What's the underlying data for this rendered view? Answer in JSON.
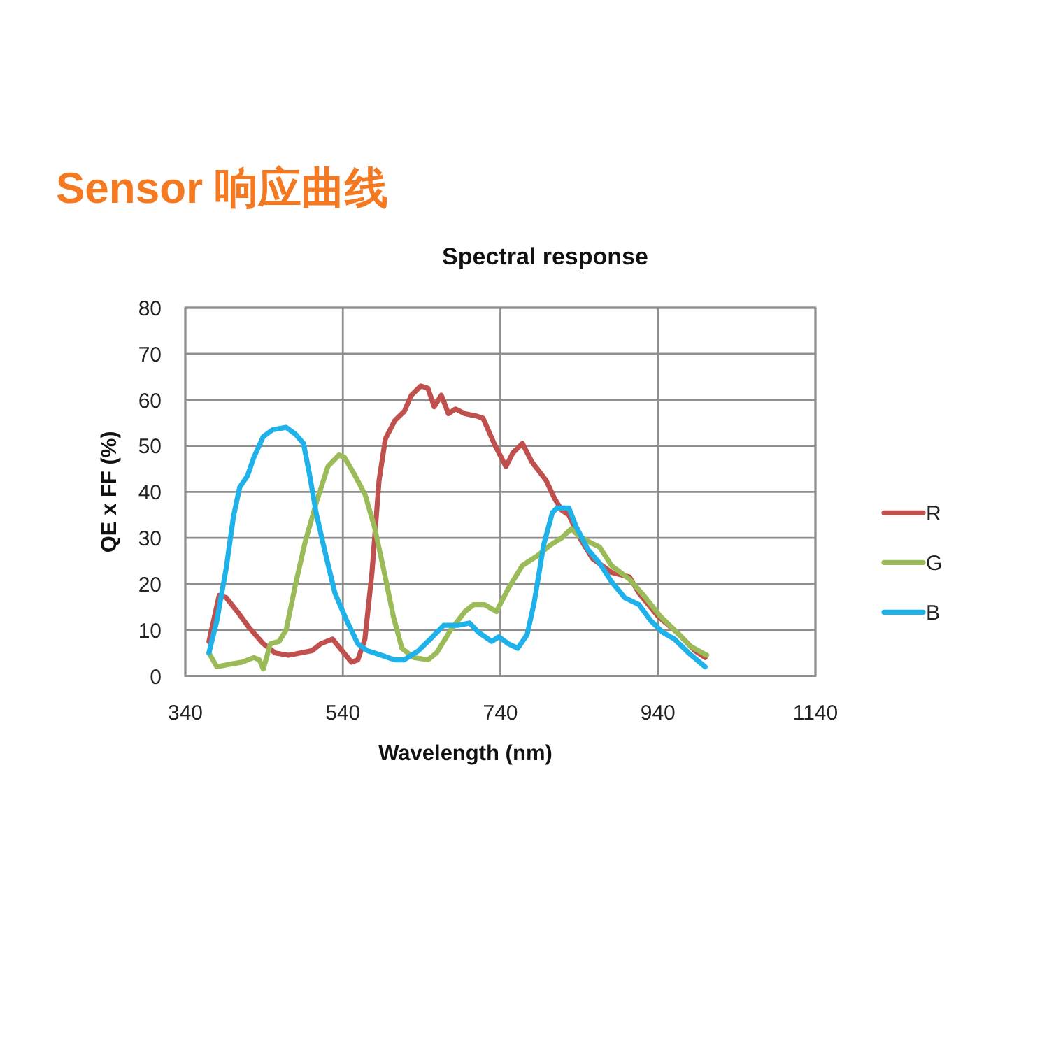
{
  "chart_data": {
    "type": "line",
    "title": "Sensor 响应曲线",
    "subtitle": "Spectral response",
    "xlabel": "Wavelength (nm)",
    "ylabel": "QE x FF (%)",
    "xlim": [
      340,
      1140
    ],
    "xticks": [
      340,
      540,
      740,
      940,
      1140
    ],
    "ylim": [
      0,
      80
    ],
    "yticks": [
      0,
      10,
      20,
      30,
      40,
      50,
      60,
      70,
      80
    ],
    "grid": true,
    "legend": "right",
    "series": [
      {
        "name": "R",
        "color": "#c0504d",
        "x": [
          370,
          383,
          392,
          406,
          421,
          439,
          454,
          471,
          486,
          501,
          512,
          527,
          539,
          551,
          559,
          568,
          577,
          586,
          594,
          606,
          618,
          627,
          639,
          648,
          656,
          665,
          674,
          683,
          695,
          709,
          718,
          732,
          747,
          756,
          768,
          780,
          798,
          809,
          818,
          827,
          839,
          857,
          881,
          904,
          916,
          940,
          964,
          987,
          1000
        ],
        "values": [
          7.5,
          17.5,
          17,
          14,
          10.5,
          7,
          5,
          4.5,
          5,
          5.5,
          7,
          8,
          5.5,
          3,
          3.5,
          8,
          22.5,
          42.5,
          51.5,
          55.5,
          57.5,
          61,
          63,
          62.5,
          58.5,
          61,
          57,
          58,
          57,
          56.5,
          56,
          50.5,
          45.5,
          48.5,
          50.5,
          46.5,
          42.5,
          38.5,
          36,
          35,
          30.5,
          25.5,
          22.5,
          21.5,
          18,
          13,
          9.5,
          5.5,
          4
        ]
      },
      {
        "name": "G",
        "color": "#9bbb59",
        "x": [
          370,
          380,
          395,
          412,
          427,
          434,
          439,
          448,
          459,
          468,
          480,
          492,
          506,
          521,
          535,
          542,
          554,
          568,
          580,
          592,
          604,
          615,
          630,
          648,
          659,
          677,
          695,
          706,
          720,
          735,
          750,
          768,
          786,
          804,
          818,
          830,
          839,
          854,
          866,
          881,
          904,
          922,
          943,
          964,
          981,
          1002
        ],
        "values": [
          5,
          2,
          2.5,
          3,
          4,
          3.5,
          1.5,
          7,
          7.5,
          10,
          20,
          29,
          37.5,
          45.5,
          48,
          47.5,
          44,
          39.5,
          32.5,
          23,
          13,
          6,
          4,
          3.5,
          5,
          10,
          14,
          15.5,
          15.5,
          14,
          19,
          24,
          26,
          28.5,
          30,
          32,
          30.5,
          29,
          28,
          24,
          21,
          17.5,
          13,
          9.5,
          6.5,
          4.5
        ]
      },
      {
        "name": "B",
        "color": "#1eb1ea",
        "x": [
          370,
          380,
          392,
          401,
          409,
          419,
          427,
          439,
          451,
          468,
          480,
          490,
          498,
          506,
          518,
          530,
          545,
          559,
          571,
          589,
          606,
          618,
          636,
          651,
          668,
          686,
          701,
          712,
          729,
          738,
          750,
          762,
          774,
          783,
          795,
          806,
          812,
          827,
          836,
          851,
          866,
          881,
          898,
          916,
          931,
          946,
          961,
          979,
          1000
        ],
        "values": [
          5,
          12,
          23.5,
          34.5,
          41,
          43.5,
          47.5,
          52,
          53.5,
          54,
          52.5,
          50.5,
          43.5,
          35.5,
          26.5,
          18,
          12,
          7,
          5.5,
          4.5,
          3.5,
          3.5,
          5.5,
          8,
          11,
          11,
          11.5,
          9.5,
          7.5,
          8.5,
          7,
          6,
          9,
          16,
          28.5,
          35.5,
          36.5,
          36.5,
          32.5,
          27.5,
          24.5,
          20.5,
          17,
          15.5,
          12,
          9.5,
          8,
          5,
          2
        ]
      }
    ]
  }
}
